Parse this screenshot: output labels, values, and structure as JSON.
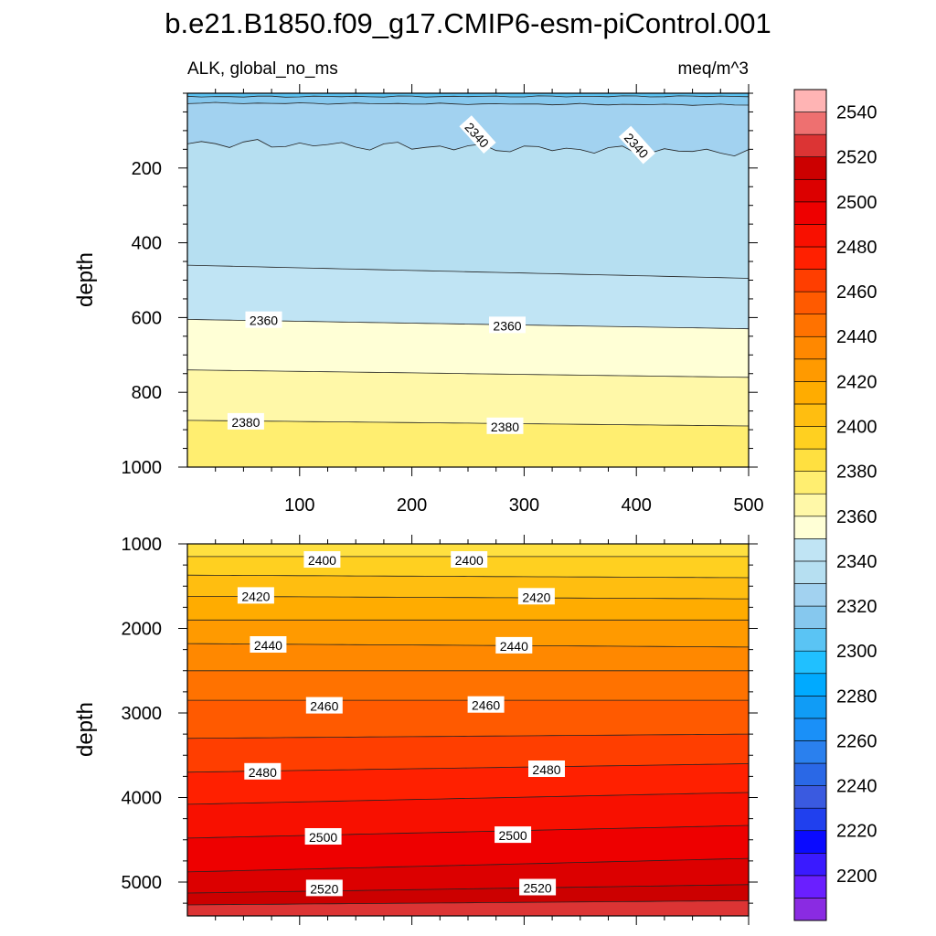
{
  "title": "b.e21.B1850.f09_g17.CMIP6-esm-piControl.001",
  "chart_data": [
    {
      "type": "contour",
      "panel": "upper",
      "left_label": "ALK, global_no_ms",
      "right_label": "meq/m^3",
      "ylabel": "depth",
      "xlabel": "",
      "xlim": [
        0,
        500
      ],
      "ylim": [
        1000,
        0
      ],
      "x_ticks": [
        "100",
        "200",
        "300",
        "400",
        "500"
      ],
      "y_ticks": [
        "200",
        "400",
        "600",
        "800",
        "1000"
      ],
      "contours": [
        {
          "level": 2320,
          "depth_left": 8,
          "depth_right": 7
        },
        {
          "level": 2330,
          "depth_left": 25,
          "depth_right": 30
        },
        {
          "level": 2340,
          "depth_left": 125,
          "depth_right": 150
        },
        {
          "level": 2350,
          "depth_left": 460,
          "depth_right": 495
        },
        {
          "level": 2360,
          "depth_left": 605,
          "depth_right": 630
        },
        {
          "level": 2370,
          "depth_left": 740,
          "depth_right": 760
        },
        {
          "level": 2380,
          "depth_left": 875,
          "depth_right": 890
        }
      ],
      "contour_labels": [
        {
          "text": "2340",
          "x": 258,
          "depth": 112,
          "rotate": 48
        },
        {
          "text": "2340",
          "x": 400,
          "depth": 140,
          "rotate": 48
        },
        {
          "text": "2360",
          "x": 68,
          "depth": 608,
          "rotate": 0
        },
        {
          "text": "2360",
          "x": 285,
          "depth": 622,
          "rotate": 0
        },
        {
          "text": "2380",
          "x": 52,
          "depth": 880,
          "rotate": 0
        },
        {
          "text": "2380",
          "x": 283,
          "depth": 892,
          "rotate": 0
        }
      ]
    },
    {
      "type": "contour",
      "panel": "lower",
      "ylabel": "depth",
      "xlim": [
        0,
        500
      ],
      "ylim": [
        5400,
        1000
      ],
      "y_ticks": [
        "1000",
        "2000",
        "3000",
        "4000",
        "5000"
      ],
      "contours": [
        {
          "level": 2400,
          "depth_left": 1150,
          "depth_right": 1150
        },
        {
          "level": 2410,
          "depth_left": 1370,
          "depth_right": 1400
        },
        {
          "level": 2420,
          "depth_left": 1620,
          "depth_right": 1650
        },
        {
          "level": 2430,
          "depth_left": 1900,
          "depth_right": 1900
        },
        {
          "level": 2440,
          "depth_left": 2180,
          "depth_right": 2220
        },
        {
          "level": 2450,
          "depth_left": 2500,
          "depth_right": 2500
        },
        {
          "level": 2460,
          "depth_left": 2850,
          "depth_right": 2850
        },
        {
          "level": 2470,
          "depth_left": 3300,
          "depth_right": 3250
        },
        {
          "level": 2480,
          "depth_left": 3700,
          "depth_right": 3600
        },
        {
          "level": 2490,
          "depth_left": 4080,
          "depth_right": 3940
        },
        {
          "level": 2500,
          "depth_left": 4480,
          "depth_right": 4330
        },
        {
          "level": 2510,
          "depth_left": 4880,
          "depth_right": 4720
        },
        {
          "level": 2520,
          "depth_left": 5130,
          "depth_right": 5030
        },
        {
          "level": 2530,
          "depth_left": 5270,
          "depth_right": 5220
        }
      ],
      "contour_labels": [
        {
          "text": "2400",
          "x": 120,
          "depth": 1195
        },
        {
          "text": "2400",
          "x": 251,
          "depth": 1195
        },
        {
          "text": "2420",
          "x": 61,
          "depth": 1620
        },
        {
          "text": "2420",
          "x": 311,
          "depth": 1630
        },
        {
          "text": "2440",
          "x": 72,
          "depth": 2200
        },
        {
          "text": "2440",
          "x": 291,
          "depth": 2210
        },
        {
          "text": "2460",
          "x": 122,
          "depth": 2920
        },
        {
          "text": "2460",
          "x": 266,
          "depth": 2910
        },
        {
          "text": "2480",
          "x": 67,
          "depth": 3700
        },
        {
          "text": "2480",
          "x": 320,
          "depth": 3670
        },
        {
          "text": "2500",
          "x": 121,
          "depth": 4470
        },
        {
          "text": "2500",
          "x": 290,
          "depth": 4450
        },
        {
          "text": "2520",
          "x": 122,
          "depth": 5080
        },
        {
          "text": "2520",
          "x": 312,
          "depth": 5070
        }
      ]
    }
  ],
  "colorbar": {
    "labels": [
      "2200",
      "2220",
      "2240",
      "2260",
      "2280",
      "2300",
      "2320",
      "2340",
      "2360",
      "2380",
      "2400",
      "2420",
      "2440",
      "2460",
      "2480",
      "2500",
      "2520",
      "2540"
    ],
    "colors": [
      "#8a2be2",
      "#6a1fff",
      "#3a1aff",
      "#0a0aff",
      "#2040ee",
      "#3a5ae0",
      "#2a68e6",
      "#2a80ee",
      "#1a90f8",
      "#109cf6",
      "#00aaff",
      "#20c0ff",
      "#5ac4f4",
      "#86c8ee",
      "#a2d2f0",
      "#b6dff1",
      "#c0e4f4",
      "#ffffd6",
      "#fff8a8",
      "#ffee70",
      "#ffe040",
      "#ffd020",
      "#ffbe10",
      "#ffac00",
      "#ff9a00",
      "#ff8800",
      "#ff7200",
      "#ff5a00",
      "#ff3e00",
      "#ff2000",
      "#f81000",
      "#ee0000",
      "#dc0000",
      "#cc0000",
      "#dc3434",
      "#ee7070",
      "#ffb4b4"
    ]
  }
}
